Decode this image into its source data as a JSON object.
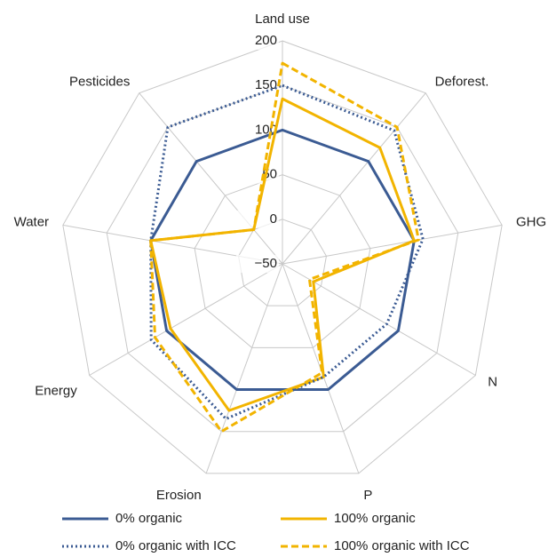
{
  "chart_data": {
    "type": "radar",
    "categories": [
      "Land use",
      "Deforest.",
      "GHG",
      "N",
      "P",
      "Erosion",
      "Energy",
      "Water",
      "Pesticides"
    ],
    "ylim": [
      -50,
      200
    ],
    "yticks": [
      {
        "value": -50,
        "label": "−50"
      },
      0,
      50,
      100,
      150,
      200
    ],
    "grid": true,
    "series": [
      {
        "name": "0% organic",
        "color": "#3b5b93",
        "style": "solid",
        "values": [
          100,
          100,
          100,
          100,
          100,
          100,
          100,
          100,
          100
        ]
      },
      {
        "name": "100% organic",
        "color": "#f2b400",
        "style": "solid",
        "values": [
          135,
          120,
          100,
          -10,
          85,
          125,
          95,
          100,
          0
        ]
      },
      {
        "name": "0% organic with ICC",
        "color": "#3b5b93",
        "style": "dotted",
        "values": [
          150,
          145,
          110,
          85,
          85,
          135,
          120,
          100,
          150
        ]
      },
      {
        "name": "100% organic with ICC",
        "color": "#f2b400",
        "style": "dashed",
        "values": [
          175,
          150,
          105,
          -15,
          80,
          150,
          115,
          100,
          0
        ]
      }
    ]
  }
}
